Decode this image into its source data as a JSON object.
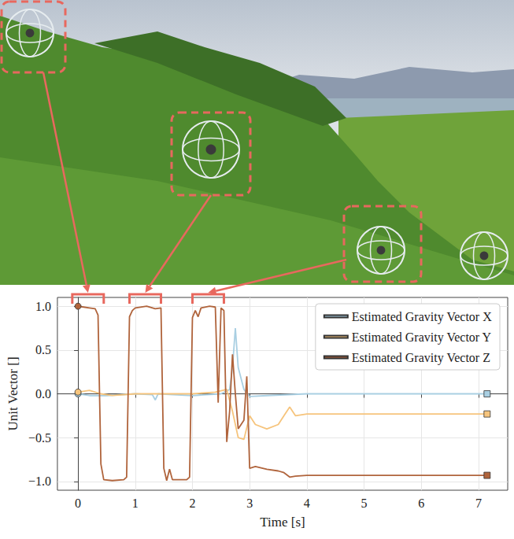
{
  "chart_data": {
    "type": "line",
    "x_label": "Time [s]",
    "y_label": "Unit Vector []",
    "xlim": [
      -0.36,
      7.51
    ],
    "xticks": [
      0,
      1,
      2,
      3,
      4,
      5,
      6,
      7
    ],
    "ylim": [
      -1.1,
      1.1
    ],
    "yticks": [
      {
        "value": -1,
        "label": "−1.0"
      },
      {
        "value": -0.5,
        "label": "−0.5"
      },
      {
        "value": 0,
        "label": "0.0"
      },
      {
        "value": 0.5,
        "label": "0.5"
      },
      {
        "value": 1,
        "label": "1.0"
      }
    ],
    "grid": true,
    "legend": "upper right",
    "marker": "ends",
    "highlight_intervals": [
      [
        -0.1,
        0.45
      ],
      [
        0.9,
        1.45
      ],
      [
        2.0,
        2.55
      ]
    ],
    "series": [
      {
        "name": "Estimated Gravity Vector X",
        "color": "#a9cfe2",
        "x": [
          0,
          0.2,
          0.5,
          1.0,
          1.3,
          1.35,
          1.4,
          2.0,
          2.5,
          2.65,
          2.7,
          2.75,
          2.8,
          2.9,
          3.0,
          3.3,
          4.0,
          5.0,
          6.0,
          7.15
        ],
        "values": [
          0,
          -0.02,
          -0.02,
          0.0,
          -0.01,
          -0.07,
          0.0,
          -0.02,
          0.0,
          0.05,
          0.3,
          0.75,
          0.3,
          0.05,
          -0.03,
          -0.02,
          0.0,
          0.0,
          0.0,
          0.0
        ]
      },
      {
        "name": "Estimated Gravity Vector Y",
        "color": "#f6c47c",
        "x": [
          0,
          0.2,
          0.4,
          0.6,
          1.0,
          1.5,
          2.0,
          2.4,
          2.6,
          2.7,
          2.8,
          2.9,
          3.0,
          3.1,
          3.3,
          3.5,
          3.6,
          3.7,
          3.8,
          4.0,
          4.5,
          5.0,
          6.0,
          7.15
        ],
        "values": [
          0.02,
          0.04,
          0.0,
          -0.02,
          0.0,
          0.0,
          0.0,
          0.02,
          0.05,
          -0.2,
          -0.5,
          -0.52,
          -0.25,
          -0.35,
          -0.4,
          -0.35,
          -0.25,
          -0.15,
          -0.25,
          -0.23,
          -0.23,
          -0.23,
          -0.23,
          -0.23
        ]
      },
      {
        "name": "Estimated Gravity Vector Z",
        "color": "#b0643c",
        "x": [
          0,
          0.1,
          0.2,
          0.3,
          0.35,
          0.4,
          0.45,
          0.6,
          0.8,
          0.85,
          0.9,
          0.95,
          1.0,
          1.2,
          1.35,
          1.45,
          1.5,
          1.55,
          1.6,
          1.65,
          1.9,
          1.95,
          2.0,
          2.05,
          2.1,
          2.15,
          2.3,
          2.4,
          2.45,
          2.5,
          2.55,
          2.6,
          2.65,
          2.7,
          2.75,
          2.8,
          2.9,
          2.95,
          3.0,
          3.1,
          3.3,
          3.5,
          3.6,
          3.7,
          3.8,
          4.0,
          4.5,
          5.0,
          6.0,
          7.15
        ],
        "values": [
          1.0,
          0.99,
          0.98,
          0.97,
          0.9,
          -0.8,
          -0.98,
          -0.99,
          -0.98,
          -0.95,
          0.88,
          0.95,
          0.98,
          1.0,
          0.97,
          0.98,
          -0.85,
          -0.99,
          -0.86,
          -0.98,
          -0.98,
          -0.95,
          0.87,
          0.95,
          0.88,
          0.98,
          1.0,
          0.99,
          -0.1,
          0.98,
          0.95,
          -0.55,
          -0.2,
          0.45,
          0.0,
          -0.4,
          -0.3,
          0.2,
          -0.85,
          -0.83,
          -0.86,
          -0.88,
          -0.9,
          -0.95,
          -0.94,
          -0.93,
          -0.93,
          -0.93,
          -0.93,
          -0.93
        ]
      }
    ]
  }
}
